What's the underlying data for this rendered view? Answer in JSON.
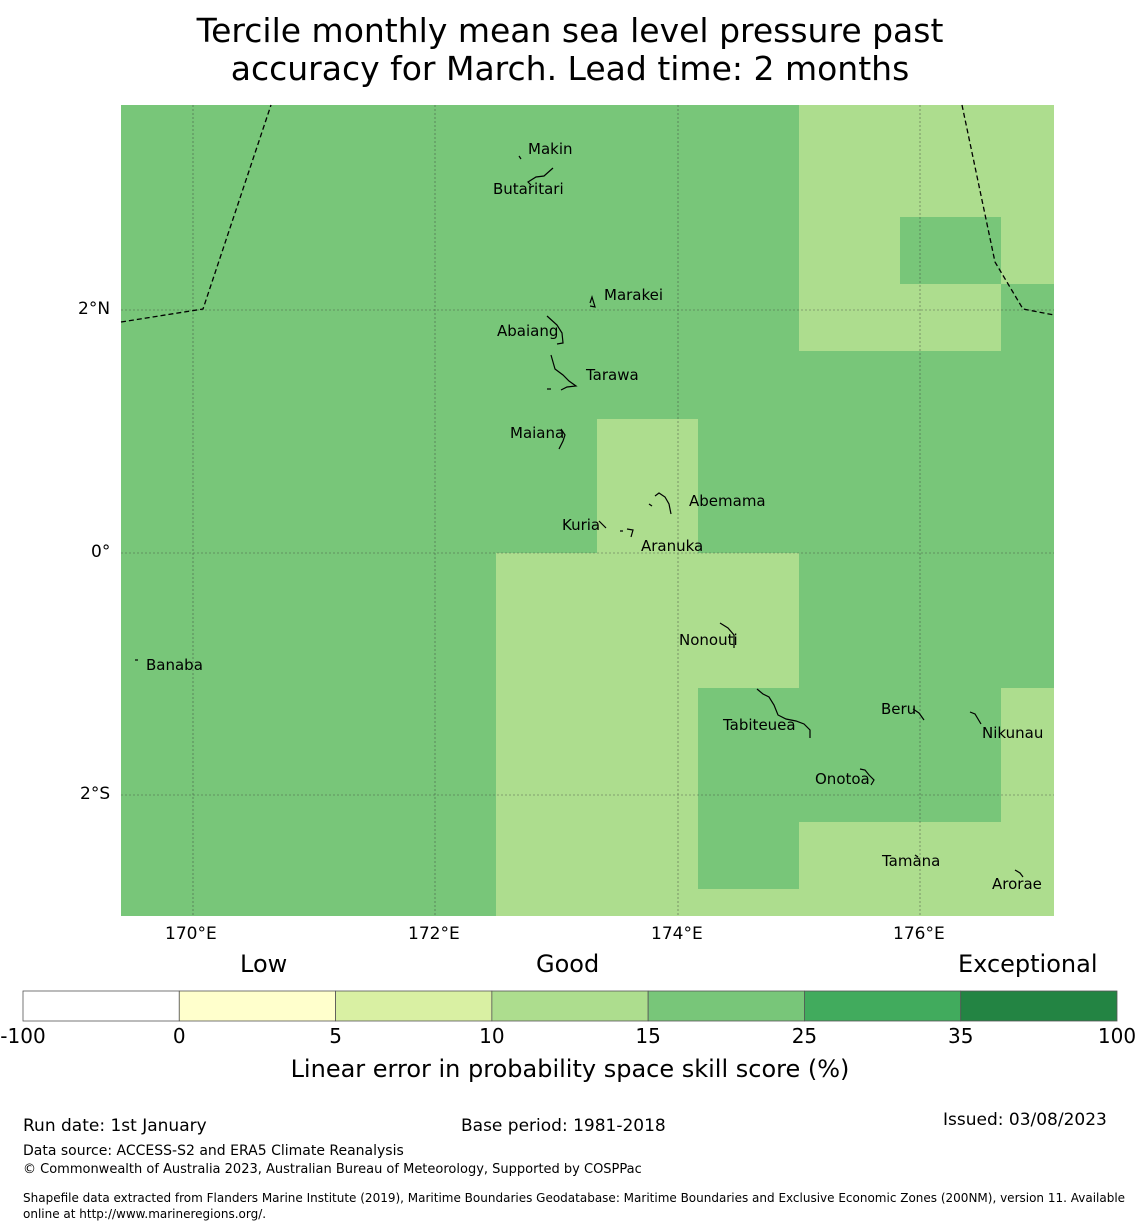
{
  "title": {
    "line1": "Tercile monthly mean sea level pressure past",
    "line2": "accuracy for March. Lead time: 2 months"
  },
  "map": {
    "lat_labels": [
      "2°N",
      "0°",
      "2°S"
    ],
    "lon_labels": [
      "170°E",
      "172°E",
      "174°E",
      "176°E"
    ],
    "islands": [
      "Makin",
      "Butaritari",
      "Marakei",
      "Abaiang",
      "Tarawa",
      "Maiana",
      "Abemama",
      "Kuria",
      "Aranuka",
      "Banaba",
      "Nonouti",
      "Tabiteuea",
      "Beru",
      "Nikunau",
      "Onotoa",
      "Tamana",
      "Arorae"
    ],
    "colors": {
      "good_dark": "#78c679",
      "good_light": "#addd8e",
      "gridline": "#333333",
      "boundary": "#000000"
    }
  },
  "legend": {
    "categories": [
      "Low",
      "Good",
      "Exceptional"
    ],
    "bins": [
      {
        "from": "-100",
        "to": "0",
        "color": "#ffffff"
      },
      {
        "from": "0",
        "to": "5",
        "color": "#ffffcc"
      },
      {
        "from": "5",
        "to": "10",
        "color": "#d9f0a3"
      },
      {
        "from": "10",
        "to": "15",
        "color": "#addd8e"
      },
      {
        "from": "15",
        "to": "25",
        "color": "#78c679"
      },
      {
        "from": "25",
        "to": "35",
        "color": "#41ab5d"
      },
      {
        "from": "35",
        "to": "100",
        "color": "#238443"
      }
    ],
    "tick_labels": [
      "-100",
      "0",
      "5",
      "10",
      "15",
      "25",
      "35",
      "100"
    ],
    "axis_label": "Linear error in probability space skill score (%)"
  },
  "footer": {
    "run_date": "Run date: 1st January",
    "base_period": "Base period: 1981-2018",
    "issued": "Issued: 03/08/2023",
    "data_source": "Data source: ACCESS-S2 and ERA5 Climate Reanalysis",
    "copyright": "© Commonwealth of Australia 2023, Australian Bureau of Meteorology, Supported by COSPPac",
    "shapefile_line1": "Shapefile data extracted from Flanders Marine Institute (2019), Maritime Boundaries Geodatabase: Maritime Boundaries and Exclusive Economic Zones (200NM), version 11. Available",
    "shapefile_line2": "online at http://www.marineregions.org/."
  }
}
